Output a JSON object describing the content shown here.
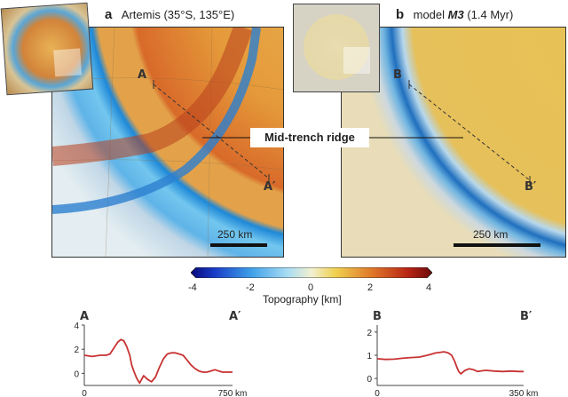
{
  "panel_a": {
    "letter": "a",
    "title": "Artemis (35°S, 135°E)",
    "point_start": "A",
    "point_end": "A′",
    "scale_bar": "250 km"
  },
  "panel_b": {
    "letter": "b",
    "title_prefix": "model ",
    "title_model": "M3",
    "title_suffix": " (1.4 Myr)",
    "point_start": "B",
    "point_end": "B′",
    "scale_bar": "250 km"
  },
  "annotation": "Mid-trench ridge",
  "colorbar": {
    "label": "Topography [km]",
    "ticks": [
      "-4",
      "-2",
      "0",
      "2",
      "4"
    ],
    "min": -4,
    "max": 4
  },
  "chart_data": [
    {
      "type": "line",
      "title": "",
      "start_label": "A",
      "end_label": "A′",
      "xlim": [
        0,
        750
      ],
      "ylim": [
        -1,
        4
      ],
      "x_tick_labels": [
        "0",
        "750 km"
      ],
      "y_tick_labels": [
        "4",
        "2",
        "0"
      ],
      "color": "#c83232",
      "x": [
        0,
        40,
        80,
        110,
        130,
        150,
        170,
        185,
        200,
        215,
        230,
        240,
        250,
        265,
        280,
        300,
        320,
        340,
        360,
        380,
        400,
        420,
        440,
        460,
        480,
        500,
        520,
        540,
        560,
        580,
        600,
        620,
        640,
        660,
        680,
        700,
        720,
        750
      ],
      "y": [
        1.5,
        1.4,
        1.5,
        1.5,
        1.6,
        2.1,
        2.6,
        2.8,
        2.7,
        2.2,
        1.5,
        0.7,
        0.2,
        -0.4,
        -0.8,
        -0.2,
        -0.5,
        -0.7,
        -0.3,
        0.5,
        1.2,
        1.6,
        1.7,
        1.7,
        1.6,
        1.5,
        1.1,
        0.7,
        0.4,
        0.2,
        0.1,
        0.1,
        0.2,
        0.3,
        0.2,
        0.1,
        0.1,
        0.1
      ]
    },
    {
      "type": "line",
      "title": "",
      "start_label": "B",
      "end_label": "B′",
      "xlim": [
        0,
        350
      ],
      "ylim": [
        -0.3,
        2.3
      ],
      "x_tick_labels": [
        "0",
        "350 km"
      ],
      "y_tick_labels": [
        "2",
        "1",
        "0"
      ],
      "color": "#c83232",
      "x": [
        0,
        20,
        40,
        60,
        80,
        100,
        120,
        140,
        160,
        170,
        178,
        185,
        190,
        195,
        200,
        210,
        220,
        230,
        240,
        250,
        260,
        280,
        300,
        320,
        340,
        350
      ],
      "y": [
        0.85,
        0.82,
        0.83,
        0.87,
        0.9,
        0.92,
        1.0,
        1.1,
        1.15,
        1.1,
        1.0,
        0.75,
        0.5,
        0.3,
        0.2,
        0.35,
        0.42,
        0.38,
        0.3,
        0.33,
        0.35,
        0.32,
        0.3,
        0.32,
        0.3,
        0.3
      ]
    }
  ]
}
